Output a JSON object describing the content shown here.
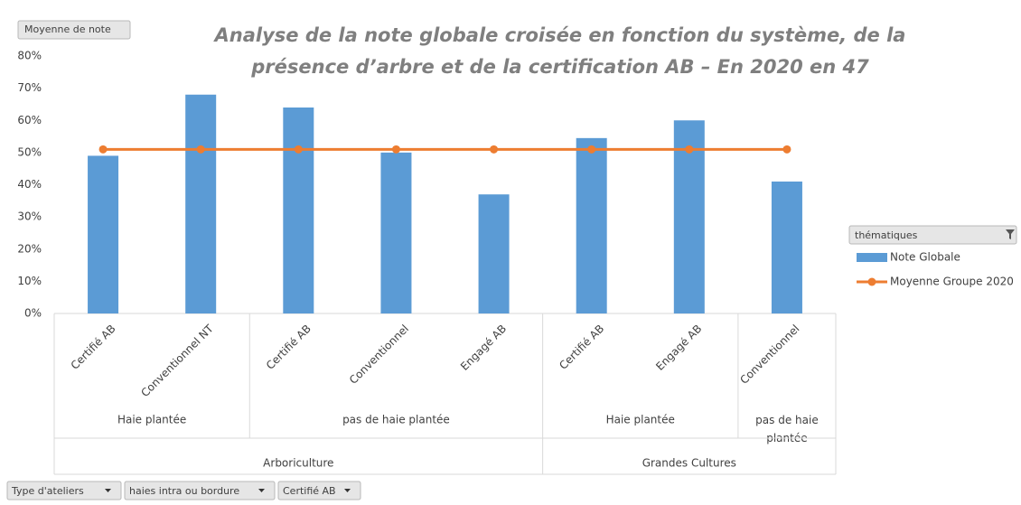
{
  "chart_data": {
    "type": "bar",
    "title_lines": [
      "Analyse de la note globale croisée en fonction du système, de la",
      "présence d’arbre et de la certification AB – En 2020 en 47"
    ],
    "value_field": "Moyenne de note",
    "categories": [
      "Certifié AB",
      "Conventionnel NT",
      "Certifié AB",
      "Conventionnel",
      "Engagé AB",
      "Certifié AB",
      "Engagé AB",
      "Conventionnel"
    ],
    "groups": [
      {
        "name": "Arboriculture",
        "subgroups": [
          {
            "name": "Haie plantée",
            "count": 2
          },
          {
            "name": "pas de haie plantée",
            "count": 3
          }
        ]
      },
      {
        "name": "Grandes Cultures",
        "subgroups": [
          {
            "name": "Haie plantée",
            "count": 2
          },
          {
            "name": "pas de haie plantée",
            "count": 1
          }
        ]
      }
    ],
    "series": [
      {
        "name": "Note Globale",
        "type": "bar",
        "color": "#5b9bd5",
        "values": [
          49,
          68,
          64,
          50,
          37,
          54.5,
          60,
          41
        ]
      },
      {
        "name": "Moyenne Groupe 2020",
        "type": "line",
        "color": "#ed7d31",
        "values": [
          51,
          51,
          51,
          51,
          51,
          51,
          51,
          51
        ]
      }
    ],
    "ylim": [
      0,
      80
    ],
    "yticks": [
      {
        "value": 0,
        "label": "0%"
      },
      {
        "value": 10,
        "label": "10%"
      },
      {
        "value": 20,
        "label": "20%"
      },
      {
        "value": 30,
        "label": "30%"
      },
      {
        "value": 40,
        "label": "40%"
      },
      {
        "value": 50,
        "label": "50%"
      },
      {
        "value": 60,
        "label": "60%"
      },
      {
        "value": 70,
        "label": "70%"
      },
      {
        "value": 80,
        "label": "80%"
      }
    ],
    "grid": false,
    "legend_title": "thématiques",
    "legend_position": "right",
    "filters": [
      "Type d'ateliers",
      "haies intra ou bordure",
      "Certifié AB"
    ]
  }
}
